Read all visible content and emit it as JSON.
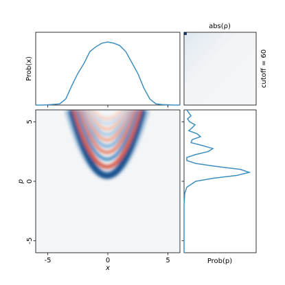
{
  "chart_data": [
    {
      "type": "line",
      "ylabel": "Prob(x)",
      "color": "#3d8ec0",
      "x": [
        -6,
        -5.5,
        -5,
        -4.5,
        -4,
        -3.5,
        -3,
        -2.5,
        -2,
        -1.5,
        -1,
        -0.5,
        0,
        0.5,
        1,
        1.5,
        2,
        2.5,
        3,
        3.5,
        4,
        4.5,
        5,
        5.5,
        6
      ],
      "values": [
        0,
        0,
        0.001,
        0.003,
        0.005,
        0.025,
        0.08,
        0.13,
        0.17,
        0.22,
        0.24,
        0.255,
        0.26,
        0.255,
        0.245,
        0.22,
        0.175,
        0.13,
        0.07,
        0.025,
        0.005,
        0.002,
        0.001,
        0,
        0
      ],
      "xlim": [
        -6,
        6
      ],
      "ylim": [
        0,
        0.3
      ]
    },
    {
      "type": "heatmap",
      "title": "abs(ρ)",
      "annotation": "cutoff = 60"
    },
    {
      "type": "heatmap",
      "xlabel": "x",
      "ylabel": "p",
      "xlim": [
        -6,
        6
      ],
      "ylim": [
        -6,
        6
      ],
      "xticks": [
        -5,
        0,
        5
      ],
      "yticks": [
        -5,
        0,
        5
      ]
    },
    {
      "type": "line",
      "orientation": "horizontal",
      "xlabel": "Prob(p)",
      "color": "#3d8ec0",
      "x": [
        -6,
        -3,
        -2,
        -1,
        -0.5,
        0,
        0.25,
        0.5,
        0.75,
        1,
        1.25,
        1.5,
        1.75,
        2,
        2.25,
        2.5,
        2.75,
        3,
        3.25,
        3.5,
        3.75,
        4,
        4.25,
        4.5,
        4.75,
        5,
        5.25,
        5.5,
        5.75,
        6
      ],
      "values": [
        0,
        0,
        0,
        0.005,
        0.019,
        0.081,
        0.2,
        0.367,
        0.452,
        0.39,
        0.224,
        0.081,
        0.019,
        0.019,
        0.081,
        0.167,
        0.2,
        0.129,
        0.048,
        0.057,
        0.114,
        0.09,
        0.033,
        0.057,
        0.076,
        0.038,
        0.024,
        0.048,
        0.033,
        0.019
      ],
      "xlim": [
        -6,
        6
      ],
      "ylim": [
        0,
        0.5
      ]
    }
  ]
}
